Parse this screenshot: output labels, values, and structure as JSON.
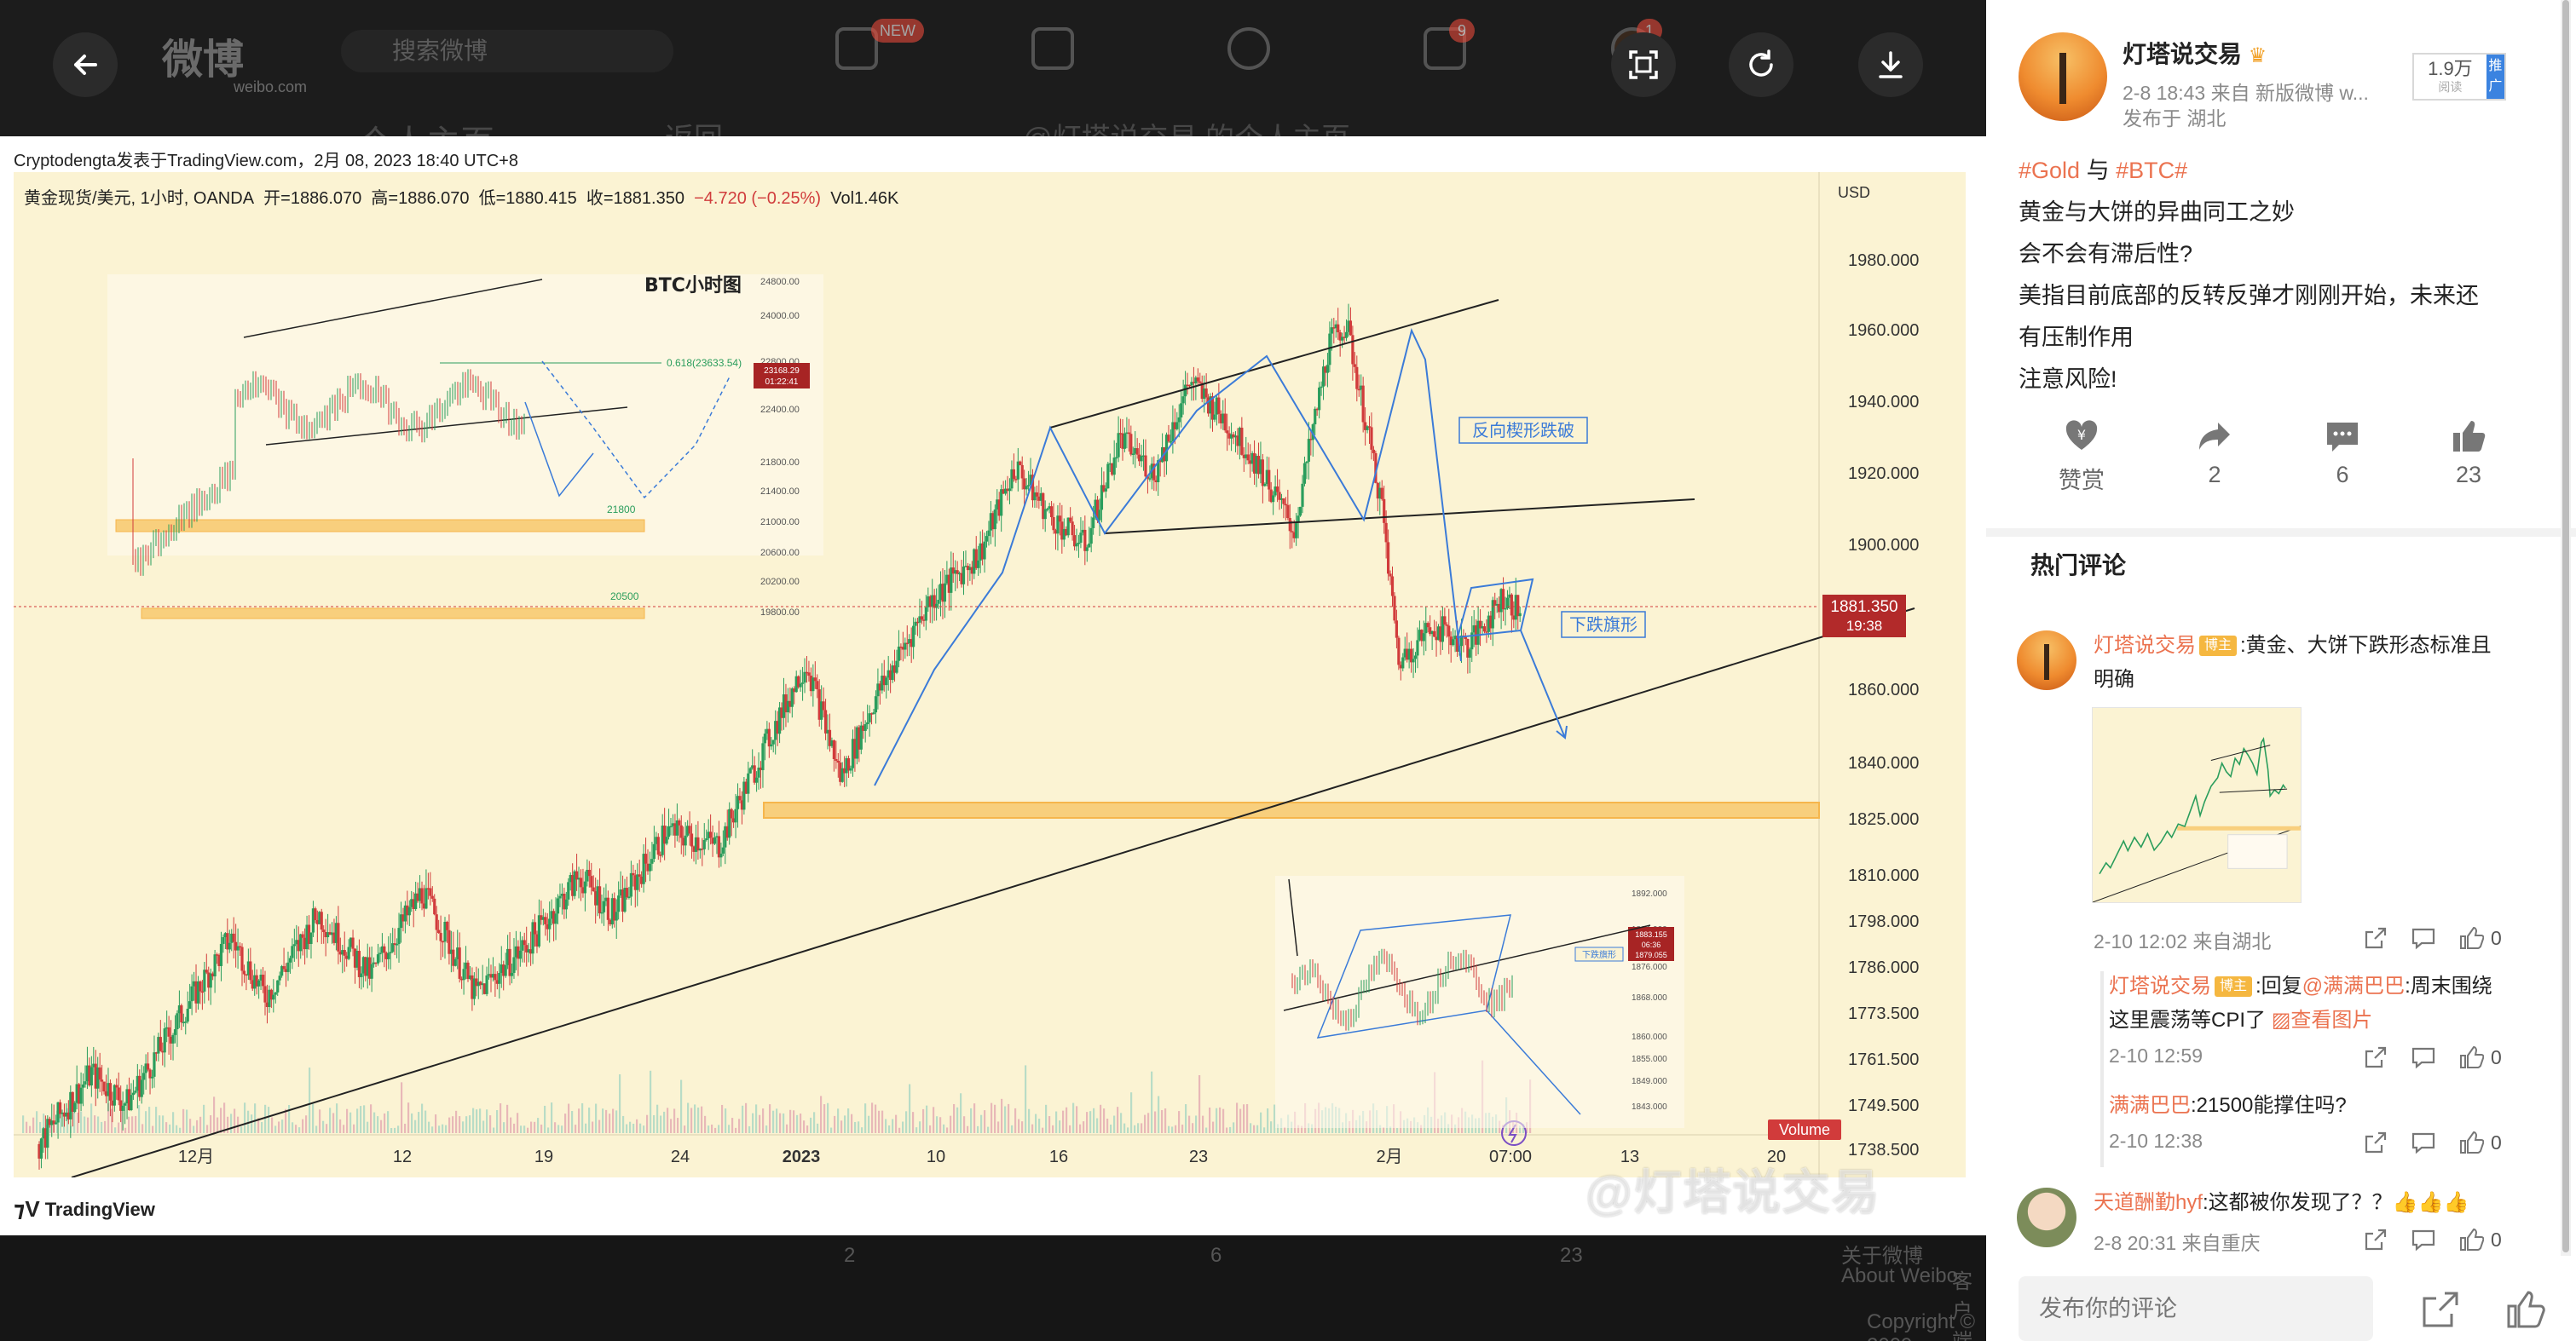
{
  "viewer": {
    "ghost": {
      "logo": "微博",
      "logo_sub": "weibo.com",
      "search_placeholder": "搜索微博",
      "badge_new": "NEW",
      "badge_mail": "9",
      "badge_avatar": "1",
      "sub_title": "个人主页",
      "sub_back": "返回",
      "sub_crumb": "@灯塔说交易 的个人主页"
    },
    "chart_attribution": "Cryptodengta发表于TradingView.com，2月 08, 2023 18:40 UTC+8",
    "ohlc": {
      "symbol": "黄金现货/美元, 1小时, OANDA",
      "open": "开=1886.070",
      "high": "高=1886.070",
      "low": "低=1880.415",
      "close": "收=1881.350",
      "change": "−4.720 (−0.25%)",
      "volume": "Vol1.46K"
    },
    "tv_brand": "TradingView",
    "watermark": "@灯塔说交易",
    "footer": {
      "reposts": "2",
      "comments": "6",
      "likes": "23",
      "about": "关于微博",
      "about_en": "About Weibo",
      "client": "客户端",
      "copyright": "Copyright © 2009-"
    },
    "colors": {
      "candle_up": "#2a9d5c",
      "candle_down": "#d13b3b",
      "zone": "#f6b64c",
      "pattern_blue": "#3b7bd8"
    }
  },
  "chart_data": {
    "type": "candlestick",
    "title": "",
    "currency_label": "USD",
    "y_ticks": [
      "1980.000",
      "1960.000",
      "1940.000",
      "1920.000",
      "1900.000",
      "1860.000",
      "1840.000",
      "1825.000",
      "1810.000",
      "1798.000",
      "1786.000",
      "1773.500",
      "1761.500",
      "1749.500",
      "1738.500"
    ],
    "y_tick_values": [
      1980,
      1960,
      1940,
      1920,
      1900,
      1860,
      1840,
      1825,
      1810,
      1798,
      1786,
      1773.5,
      1761.5,
      1749.5,
      1738.5
    ],
    "x_ticks": [
      "12月",
      "12",
      "19",
      "24",
      "2023",
      "10",
      "16",
      "23",
      "2月",
      "07:00",
      "13",
      "20"
    ],
    "current_price": "1881.350",
    "current_time": "19:38",
    "volume_label": "Volume",
    "price_path": [
      {
        "t": 0,
        "p": 1740
      },
      {
        "t": 3,
        "p": 1758
      },
      {
        "t": 5,
        "p": 1750
      },
      {
        "t": 8,
        "p": 1772
      },
      {
        "t": 11,
        "p": 1794
      },
      {
        "t": 13,
        "p": 1778
      },
      {
        "t": 16,
        "p": 1800
      },
      {
        "t": 19,
        "p": 1784
      },
      {
        "t": 22,
        "p": 1806
      },
      {
        "t": 25,
        "p": 1779
      },
      {
        "t": 28,
        "p": 1792
      },
      {
        "t": 31,
        "p": 1810
      },
      {
        "t": 33,
        "p": 1800
      },
      {
        "t": 36,
        "p": 1822
      },
      {
        "t": 39,
        "p": 1818
      },
      {
        "t": 42,
        "p": 1848
      },
      {
        "t": 44,
        "p": 1868
      },
      {
        "t": 46,
        "p": 1836
      },
      {
        "t": 48,
        "p": 1858
      },
      {
        "t": 51,
        "p": 1884
      },
      {
        "t": 54,
        "p": 1898
      },
      {
        "t": 56,
        "p": 1922
      },
      {
        "t": 58,
        "p": 1908
      },
      {
        "t": 60,
        "p": 1900
      },
      {
        "t": 62,
        "p": 1930
      },
      {
        "t": 64,
        "p": 1920
      },
      {
        "t": 66,
        "p": 1946
      },
      {
        "t": 68,
        "p": 1935
      },
      {
        "t": 70,
        "p": 1922
      },
      {
        "t": 72,
        "p": 1904
      },
      {
        "t": 74,
        "p": 1956
      },
      {
        "t": 75,
        "p": 1962
      },
      {
        "t": 77,
        "p": 1912
      },
      {
        "t": 78,
        "p": 1868
      },
      {
        "t": 80,
        "p": 1878
      },
      {
        "t": 82,
        "p": 1872
      },
      {
        "t": 84,
        "p": 1886
      },
      {
        "t": 85,
        "p": 1881
      }
    ],
    "annotations": [
      {
        "label": "反向楔形跌破"
      },
      {
        "label": "下跌旗形"
      },
      {
        "label": "BTC小时图"
      }
    ],
    "inset_btc": {
      "title": "BTC小时图",
      "y_ticks": [
        "24800.00",
        "24000.00",
        "23168.29",
        "22800.00",
        "22400.00",
        "21800.00",
        "21400.00",
        "21000.00",
        "20600.00",
        "20200.00",
        "19800.00"
      ],
      "level_labels": [
        "0.618(23633.54)",
        "21800",
        "20500"
      ],
      "price_tag": "23168.29",
      "price_tag_time": "01:22:41"
    },
    "inset_gold": {
      "label": "下跌旗形",
      "y_ticks": [
        "1892.000",
        "1884.000",
        "1876.000",
        "1868.000",
        "1860.000",
        "1855.000",
        "1849.000",
        "1843.000"
      ],
      "price_tags": [
        "1883.155",
        "06:36",
        "1879.055"
      ]
    }
  },
  "overlay_buttons": [
    "back",
    "fit-screen",
    "rotate",
    "download"
  ],
  "post": {
    "author": "灯塔说交易",
    "meta": "2-8 18:43  来自 新版微博 w...",
    "location": "发布于 湖北",
    "reads": "1.9万",
    "reads_label": "阅读",
    "promo": "推广",
    "lines": [
      {
        "tag1": "#Gold",
        "mid": " 与 ",
        "tag2": "#BTC#"
      },
      {
        "text": "黄金与大饼的异曲同工之妙"
      },
      {
        "text": "会不会有滞后性?"
      },
      {
        "text": "美指目前底部的反转反弹才刚刚开始，未来还"
      },
      {
        "text": "有压制作用"
      },
      {
        "text": "注意风险!"
      }
    ],
    "actions": {
      "reward": "赞赏",
      "reposts": "2",
      "comments": "6",
      "likes": "23"
    }
  },
  "comments": {
    "title": "热门评论",
    "items": [
      {
        "name": "灯塔说交易",
        "badge": "博主",
        "text1": ":黄金、大饼下跌形态标准且",
        "text2": "明确",
        "meta": "2-10 12:02 来自湖北",
        "likes": "0"
      },
      {
        "name": "灯塔说交易",
        "badge": "博主",
        "text_pre": ":回复",
        "mention": "@满满巴巴",
        "text_mid": ":周末围绕",
        "text2": "这里震荡等CPI了",
        "link": "查看图片",
        "meta": "2-10 12:59",
        "likes": "0"
      },
      {
        "name": "满满巴巴",
        "text1": ":21500能撑住吗?",
        "meta": "2-10 12:38",
        "likes": "0"
      },
      {
        "name": "天道酬勤hyf",
        "text1": ":这都被你发现了？？👍👍👍",
        "meta": "2-8 20:31 来自重庆",
        "likes": "0"
      }
    ],
    "input_placeholder": "发布你的评论"
  }
}
